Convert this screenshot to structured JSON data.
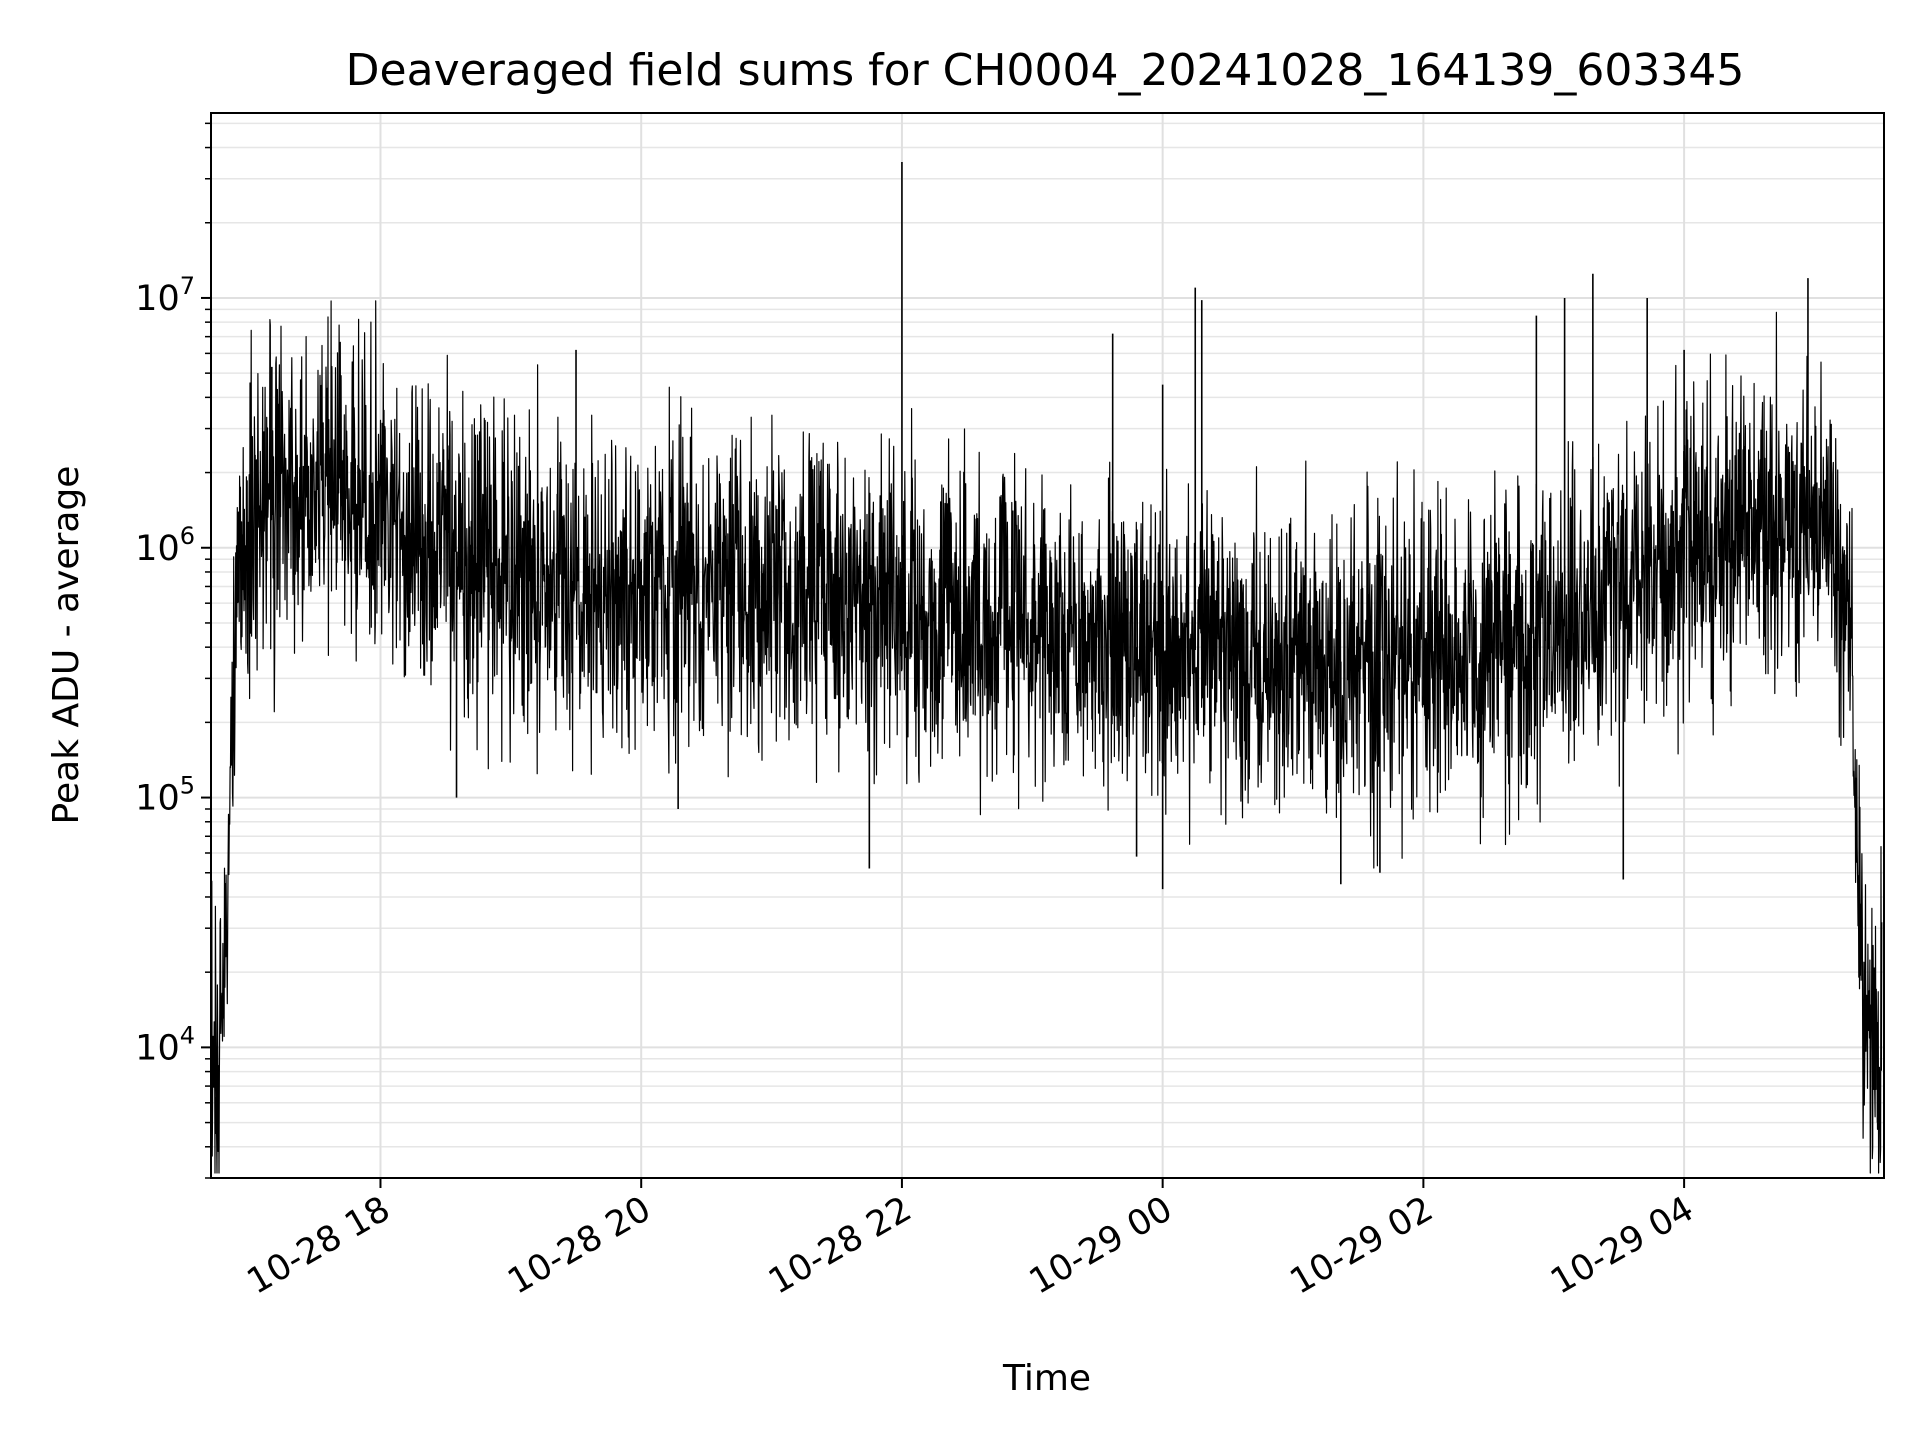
{
  "chart_data": {
    "type": "line",
    "title": "Deaveraged field sums for CH0004_20241028_164139_603345",
    "xlabel": "Time",
    "ylabel": "Peak ADU - average",
    "x_tick_labels": [
      "10-28 18",
      "10-28 20",
      "10-28 22",
      "10-29 00",
      "10-29 02",
      "10-29 04"
    ],
    "x_ticks": [
      "2024-10-28 18:00",
      "2024-10-28 20:00",
      "2024-10-28 22:00",
      "2024-10-29 00:00",
      "2024-10-29 02:00",
      "2024-10-29 04:00"
    ],
    "xlim": [
      "2024-10-28 16:42",
      "2024-10-29 05:32"
    ],
    "y_tick_labels": [
      {
        "base": "10",
        "exp": "4",
        "value": 10000
      },
      {
        "base": "10",
        "exp": "5",
        "value": 100000
      },
      {
        "base": "10",
        "exp": "6",
        "value": 1000000
      },
      {
        "base": "10",
        "exp": "7",
        "value": 10000000
      }
    ],
    "yscale": "log",
    "ylim": [
      3000,
      55000000
    ],
    "grid": true,
    "line_color": "#000000",
    "series": [
      {
        "x": [
          "2024-10-28 16:42",
          "2024-10-28 16:43",
          "2024-10-28 16:45",
          "2024-10-28 16:46",
          "2024-10-28 16:48",
          "2024-10-28 16:50",
          "2024-10-28 16:52",
          "2024-10-28 16:53",
          "2024-10-28 16:55",
          "2024-10-28 16:57",
          "2024-10-28 17:00",
          "2024-10-28 17:05",
          "2024-10-28 17:10",
          "2024-10-28 17:20",
          "2024-10-28 17:30",
          "2024-10-28 17:45",
          "2024-10-28 18:00",
          "2024-10-28 18:15",
          "2024-10-28 18:30",
          "2024-10-28 18:45",
          "2024-10-28 19:00",
          "2024-10-28 19:20",
          "2024-10-28 19:40",
          "2024-10-28 20:00",
          "2024-10-28 20:15",
          "2024-10-28 20:30",
          "2024-10-28 21:00",
          "2024-10-28 21:30",
          "2024-10-28 22:00",
          "2024-10-28 22:30",
          "2024-10-28 23:00",
          "2024-10-28 23:30",
          "2024-10-29 00:00",
          "2024-10-29 00:30",
          "2024-10-29 01:00",
          "2024-10-29 01:30",
          "2024-10-29 02:00",
          "2024-10-29 02:30",
          "2024-10-29 03:00",
          "2024-10-29 03:30",
          "2024-10-29 04:00",
          "2024-10-29 04:30",
          "2024-10-29 05:00",
          "2024-10-29 05:10",
          "2024-10-29 05:15",
          "2024-10-29 05:18",
          "2024-10-29 05:20",
          "2024-10-29 05:22",
          "2024-10-29 05:25",
          "2024-10-29 05:28",
          "2024-10-29 05:31"
        ],
        "y": [
          30000,
          8000,
          5000,
          12000,
          20000,
          60000,
          200000,
          500000,
          800000,
          1000000,
          1200000,
          1400000,
          1600000,
          1800000,
          1700000,
          1600000,
          1300000,
          1100000,
          1000000,
          900000,
          800000,
          700000,
          650000,
          600000,
          700000,
          750000,
          700000,
          600000,
          600000,
          500000,
          450000,
          400000,
          400000,
          380000,
          350000,
          350000,
          350000,
          380000,
          450000,
          700000,
          900000,
          1100000,
          1200000,
          1000000,
          700000,
          200000,
          50000,
          20000,
          12000,
          10000,
          12000
        ],
        "spread": 2.3
      }
    ],
    "spikes": [
      {
        "x": "2024-10-28 22:00",
        "y": 35000000
      },
      {
        "x": "2024-10-29 00:15",
        "y": 11000000
      },
      {
        "x": "2024-10-29 00:18",
        "y": 9800000
      },
      {
        "x": "2024-10-29 03:05",
        "y": 10000000
      },
      {
        "x": "2024-10-29 03:18",
        "y": 12500000
      },
      {
        "x": "2024-10-29 03:43",
        "y": 10000000
      },
      {
        "x": "2024-10-29 04:57",
        "y": 12000000
      },
      {
        "x": "2024-10-28 23:37",
        "y": 7200000
      },
      {
        "x": "2024-10-28 19:30",
        "y": 6200000
      },
      {
        "x": "2024-10-29 00:00",
        "y": 4500000
      },
      {
        "x": "2024-10-29 02:52",
        "y": 8500000
      },
      {
        "x": "2024-10-29 04:00",
        "y": 6200000
      },
      {
        "x": "2024-10-28 17:10",
        "y": 5300000
      }
    ],
    "dips": [
      {
        "x": "2024-10-28 16:44",
        "y": 4500
      },
      {
        "x": "2024-10-28 18:35",
        "y": 100000
      },
      {
        "x": "2024-10-28 20:17",
        "y": 90000
      },
      {
        "x": "2024-10-28 21:45",
        "y": 52000
      },
      {
        "x": "2024-10-28 23:48",
        "y": 58000
      },
      {
        "x": "2024-10-29 00:00",
        "y": 43000
      },
      {
        "x": "2024-10-29 01:22",
        "y": 45000
      },
      {
        "x": "2024-10-29 01:40",
        "y": 50000
      },
      {
        "x": "2024-10-29 03:32",
        "y": 47000
      },
      {
        "x": "2024-10-29 05:29",
        "y": 5000
      }
    ]
  }
}
